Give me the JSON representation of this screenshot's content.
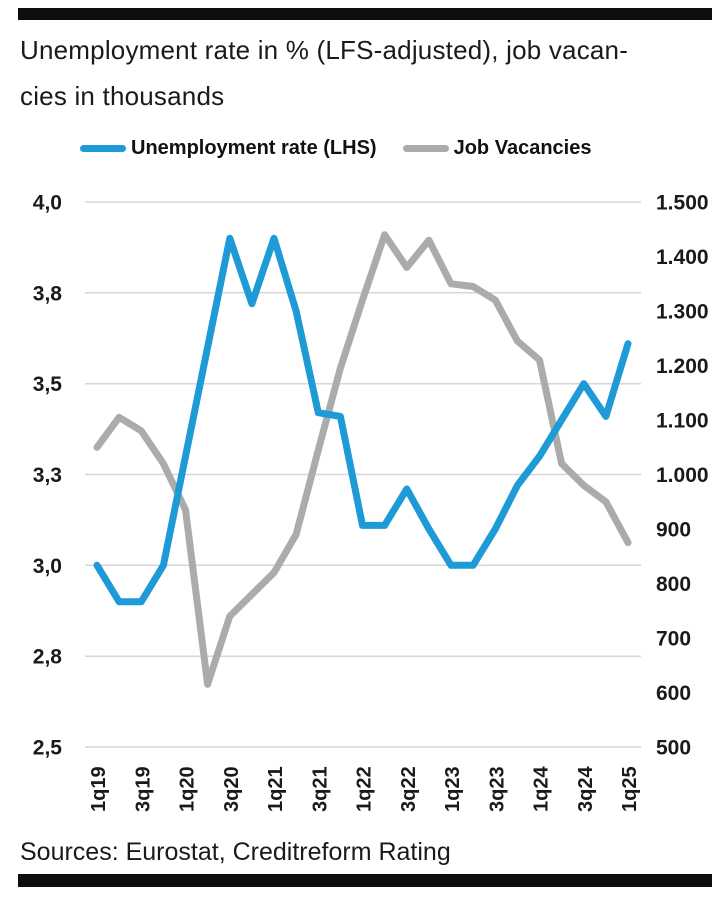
{
  "header": {
    "title_line1": "Unemployment rate in % (LFS-adjusted), job vacan-",
    "title_line2": "cies in thousands"
  },
  "legend": {
    "items": [
      {
        "label": "Unemployment rate (LHS)",
        "color": "#1e9ad6"
      },
      {
        "label": "Job Vacancies",
        "color": "#ababab"
      }
    ]
  },
  "footer": {
    "source_note": "Sources: Eurostat, Creditreform Rating"
  },
  "colors": {
    "unemployment_line": "#1e9ad6",
    "vacancies_line": "#ababab",
    "gridline": "#d6d6d6",
    "text": "#1a1a1a"
  },
  "chart_data": {
    "type": "line",
    "title": "Unemployment rate in % (LFS-adjusted), job vacancies in thousands",
    "grid": true,
    "legend_position": "top",
    "categories": [
      "1q19",
      "2q19",
      "3q19",
      "4q19",
      "1q20",
      "2q20",
      "3q20",
      "4q20",
      "1q21",
      "2q21",
      "3q21",
      "4q21",
      "1q22",
      "2q22",
      "3q22",
      "4q22",
      "1q23",
      "2q23",
      "3q23",
      "4q23",
      "1q24",
      "2q24",
      "3q24",
      "4q24",
      "1q25"
    ],
    "x_tick_labels": [
      "1q19",
      "3q19",
      "1q20",
      "3q20",
      "1q21",
      "3q21",
      "1q22",
      "3q22",
      "1q23",
      "3q23",
      "1q24",
      "3q24",
      "1q25"
    ],
    "series": [
      {
        "name": "Unemployment rate (LHS)",
        "axis": "left",
        "color": "#1e9ad6",
        "values": [
          3.0,
          2.9,
          2.9,
          3.0,
          3.3,
          3.6,
          3.9,
          3.72,
          3.9,
          3.7,
          3.42,
          3.41,
          3.11,
          3.11,
          3.21,
          3.1,
          3.0,
          3.0,
          3.1,
          3.22,
          3.3,
          3.4,
          3.5,
          3.41,
          3.61
        ]
      },
      {
        "name": "Job Vacancies",
        "axis": "right",
        "color": "#ababab",
        "values": [
          1050,
          1105,
          1080,
          1020,
          935,
          615,
          740,
          780,
          820,
          890,
          1045,
          1195,
          1320,
          1440,
          1380,
          1430,
          1350,
          1345,
          1320,
          1245,
          1210,
          1020,
          980,
          950,
          875
        ]
      }
    ],
    "left_axis": {
      "range": [
        2.5,
        4.0
      ],
      "ticks": [
        {
          "label": "4,0",
          "value": 4.0
        },
        {
          "label": "3,8",
          "value": 3.75
        },
        {
          "label": "3,5",
          "value": 3.5
        },
        {
          "label": "3,3",
          "value": 3.25
        },
        {
          "label": "3,0",
          "value": 3.0
        },
        {
          "label": "2,8",
          "value": 2.75
        },
        {
          "label": "2,5",
          "value": 2.5
        }
      ]
    },
    "right_axis": {
      "range": [
        500,
        1500
      ],
      "ticks": [
        {
          "label": "1.500",
          "value": 1500
        },
        {
          "label": "1.400",
          "value": 1400
        },
        {
          "label": "1.300",
          "value": 1300
        },
        {
          "label": "1.200",
          "value": 1200
        },
        {
          "label": "1.100",
          "value": 1100
        },
        {
          "label": "1.000",
          "value": 1000
        },
        {
          "label": "900",
          "value": 900
        },
        {
          "label": "800",
          "value": 800
        },
        {
          "label": "700",
          "value": 700
        },
        {
          "label": "600",
          "value": 600
        },
        {
          "label": "500",
          "value": 500
        }
      ]
    }
  }
}
